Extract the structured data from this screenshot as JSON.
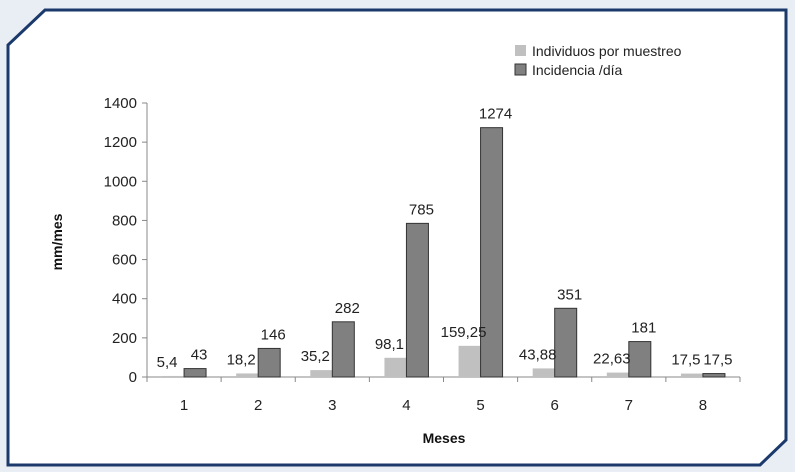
{
  "chart_data": {
    "type": "bar",
    "xlabel": "Meses",
    "ylabel": "mm/mes",
    "ylim": [
      0,
      1400
    ],
    "yticks": [
      0,
      200,
      400,
      600,
      800,
      1000,
      1200,
      1400
    ],
    "categories": [
      "1",
      "2",
      "3",
      "4",
      "5",
      "6",
      "7",
      "8"
    ],
    "legend_position": "top-right",
    "series": [
      {
        "name": "Individuos por muestreo",
        "color": "#c0c0c0",
        "values": [
          5.4,
          18.2,
          35.2,
          98.1,
          159.25,
          43.88,
          22.63,
          17.5
        ],
        "labels": [
          "5,4",
          "18,2",
          "35,2",
          "98,1",
          "159,25",
          "43,88",
          "22,63",
          "17,5"
        ]
      },
      {
        "name": "Incidencia /día",
        "color": "#808080",
        "values": [
          43,
          146,
          282,
          785,
          1274,
          351,
          181,
          17.5
        ],
        "labels": [
          "43",
          "146",
          "282",
          "785",
          "1274",
          "351",
          "181",
          "17,5"
        ]
      }
    ]
  }
}
